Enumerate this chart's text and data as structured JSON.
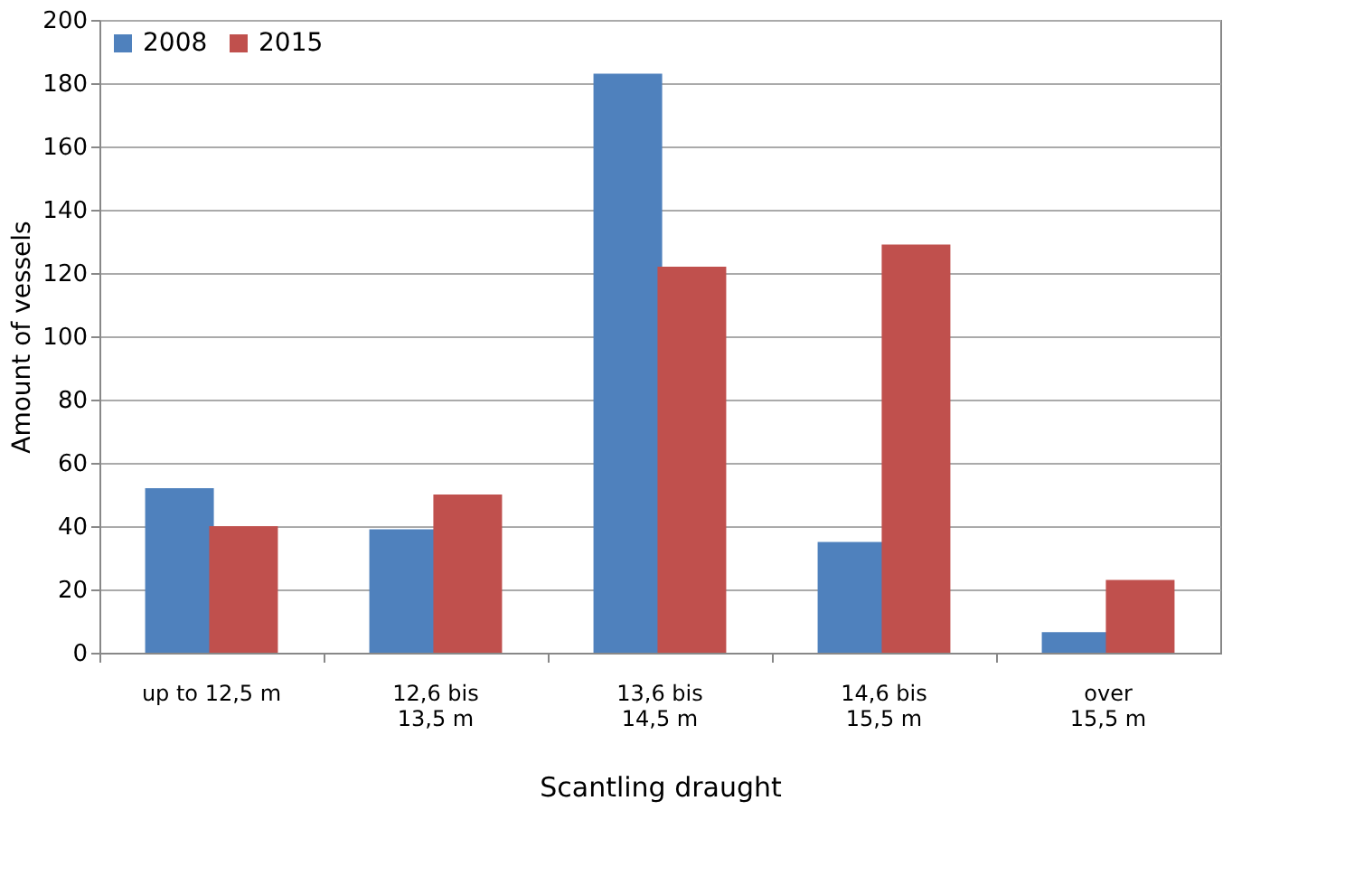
{
  "chart_data": {
    "type": "bar",
    "xlabel": "Scantling draught",
    "ylabel": "Amount of vessels",
    "categories": [
      "up to  12,5 m",
      "12,6 bis\n13,5 m",
      "13,6 bis\n14,5 m",
      "14,6 bis\n15,5 m",
      "over\n15,5 m"
    ],
    "series": [
      {
        "name": "2008",
        "color": "#4f81bd",
        "values": [
          52,
          39,
          183,
          35,
          6.5
        ]
      },
      {
        "name": "2015",
        "color": "#c0504d",
        "values": [
          40,
          50,
          122,
          129,
          23
        ]
      }
    ],
    "ylim": [
      0,
      200
    ],
    "yticks": [
      0,
      20,
      40,
      60,
      80,
      100,
      120,
      140,
      160,
      180,
      200
    ],
    "grid": "y",
    "legend": "top left"
  }
}
